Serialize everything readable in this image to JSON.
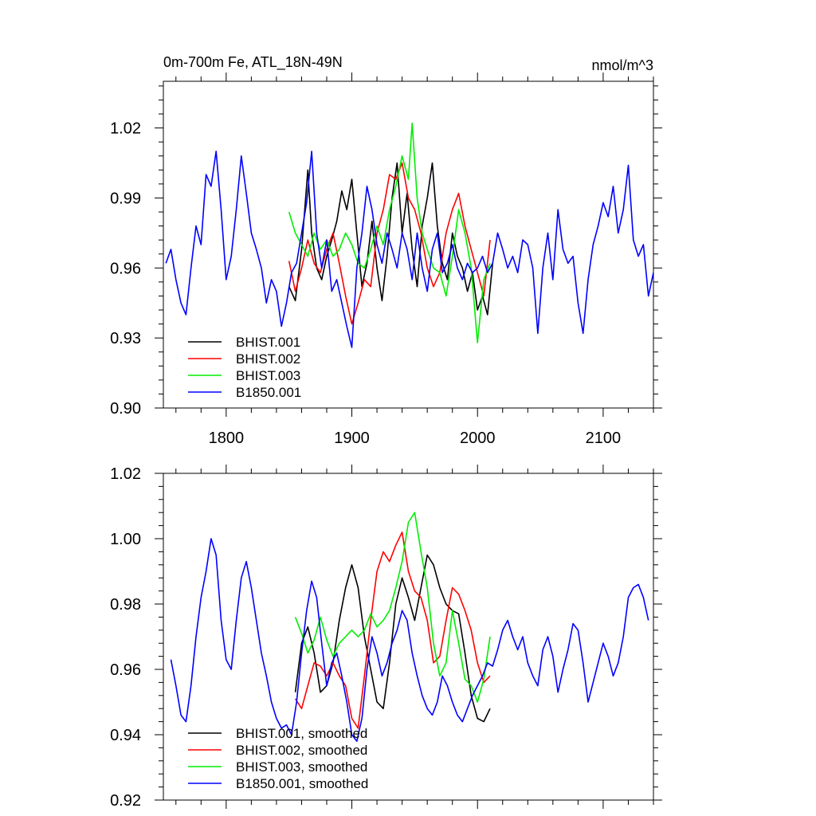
{
  "chart_data": [
    {
      "type": "line",
      "title": "0m-700m Fe, ATL_18N-49N",
      "units": "nmol/m^3",
      "xlim": [
        1750,
        2140
      ],
      "ylim": [
        0.9,
        1.04
      ],
      "xticks": [
        1800,
        1900,
        2000,
        2100
      ],
      "xtick_labels": [
        "1800",
        "1900",
        "2000",
        "2100"
      ],
      "yticks": [
        0.9,
        0.93,
        0.96,
        0.99,
        1.02
      ],
      "ytick_labels": [
        "0.90",
        "0.93",
        "0.96",
        "0.99",
        "1.02"
      ],
      "legend_position": "bottom-left",
      "series": [
        {
          "name": "BHIST.001",
          "color": "#000000",
          "x": [
            1850,
            1855,
            1860,
            1865,
            1868,
            1872,
            1876,
            1880,
            1884,
            1888,
            1892,
            1896,
            1900,
            1904,
            1908,
            1912,
            1916,
            1920,
            1924,
            1928,
            1932,
            1936,
            1940,
            1944,
            1948,
            1952,
            1956,
            1960,
            1964,
            1968,
            1972,
            1976,
            1980,
            1984,
            1988,
            1992,
            1996,
            2000,
            2004,
            2008,
            2012
          ],
          "values": [
            0.952,
            0.946,
            0.968,
            1.002,
            0.975,
            0.96,
            0.955,
            0.965,
            0.972,
            0.98,
            0.993,
            0.985,
            0.998,
            0.975,
            0.952,
            0.962,
            0.98,
            0.96,
            0.946,
            0.965,
            0.99,
            1.005,
            0.975,
            0.992,
            0.968,
            0.952,
            0.978,
            0.99,
            1.005,
            0.978,
            0.962,
            0.955,
            0.975,
            0.965,
            0.96,
            0.95,
            0.958,
            0.942,
            0.948,
            0.94,
            0.962
          ]
        },
        {
          "name": "BHIST.002",
          "color": "#ff0000",
          "x": [
            1850,
            1855,
            1860,
            1865,
            1870,
            1875,
            1880,
            1885,
            1890,
            1895,
            1900,
            1905,
            1910,
            1915,
            1920,
            1925,
            1930,
            1935,
            1940,
            1945,
            1950,
            1955,
            1960,
            1965,
            1970,
            1975,
            1980,
            1985,
            1990,
            1995,
            2000,
            2005,
            2010
          ],
          "values": [
            0.963,
            0.95,
            0.96,
            0.972,
            0.962,
            0.958,
            0.968,
            0.975,
            0.962,
            0.948,
            0.936,
            0.945,
            0.955,
            0.952,
            0.975,
            0.985,
            1.0,
            0.998,
            1.005,
            0.99,
            0.985,
            0.975,
            0.96,
            0.952,
            0.958,
            0.975,
            0.985,
            0.992,
            0.978,
            0.968,
            0.958,
            0.948,
            0.972
          ]
        },
        {
          "name": "BHIST.003",
          "color": "#00ee00",
          "x": [
            1850,
            1855,
            1860,
            1865,
            1870,
            1875,
            1880,
            1885,
            1890,
            1895,
            1900,
            1905,
            1910,
            1915,
            1920,
            1925,
            1930,
            1935,
            1940,
            1945,
            1948,
            1952,
            1956,
            1960,
            1965,
            1970,
            1975,
            1980,
            1985,
            1990,
            1995,
            2000,
            2005,
            2010
          ],
          "values": [
            0.984,
            0.975,
            0.97,
            0.965,
            0.975,
            0.968,
            0.972,
            0.965,
            0.968,
            0.975,
            0.97,
            0.962,
            0.96,
            0.968,
            0.978,
            0.97,
            0.985,
            0.995,
            1.008,
            0.998,
            1.022,
            0.99,
            0.975,
            0.968,
            0.96,
            0.958,
            0.948,
            0.965,
            0.985,
            0.975,
            0.96,
            0.928,
            0.955,
            0.962
          ]
        },
        {
          "name": "B1850.001",
          "color": "#0000ff",
          "x": [
            1752,
            1756,
            1760,
            1764,
            1768,
            1772,
            1776,
            1780,
            1784,
            1788,
            1792,
            1796,
            1800,
            1804,
            1808,
            1812,
            1816,
            1820,
            1824,
            1828,
            1832,
            1836,
            1840,
            1844,
            1848,
            1852,
            1856,
            1860,
            1864,
            1868,
            1872,
            1876,
            1880,
            1884,
            1888,
            1892,
            1896,
            1900,
            1904,
            1908,
            1912,
            1916,
            1920,
            1924,
            1928,
            1932,
            1936,
            1940,
            1944,
            1948,
            1952,
            1956,
            1960,
            1964,
            1968,
            1972,
            1976,
            1980,
            1984,
            1988,
            1992,
            1996,
            2000,
            2004,
            2008,
            2012,
            2016,
            2020,
            2024,
            2028,
            2032,
            2036,
            2040,
            2044,
            2048,
            2052,
            2056,
            2060,
            2064,
            2068,
            2072,
            2076,
            2080,
            2084,
            2088,
            2092,
            2096,
            2100,
            2104,
            2108,
            2112,
            2116,
            2120,
            2124,
            2128,
            2132,
            2136,
            2140
          ],
          "values": [
            0.962,
            0.968,
            0.955,
            0.945,
            0.94,
            0.96,
            0.978,
            0.97,
            1.0,
            0.995,
            1.01,
            0.985,
            0.955,
            0.965,
            0.985,
            1.008,
            0.992,
            0.975,
            0.968,
            0.96,
            0.945,
            0.955,
            0.95,
            0.935,
            0.945,
            0.958,
            0.962,
            0.975,
            0.988,
            1.01,
            0.975,
            0.96,
            0.972,
            0.95,
            0.955,
            0.945,
            0.935,
            0.926,
            0.96,
            0.975,
            0.995,
            0.985,
            0.97,
            0.962,
            0.975,
            0.968,
            0.96,
            0.975,
            0.968,
            0.955,
            0.975,
            0.96,
            0.95,
            0.968,
            0.975,
            0.958,
            0.962,
            0.97,
            0.96,
            0.955,
            0.962,
            0.958,
            0.96,
            0.965,
            0.958,
            0.962,
            0.975,
            0.968,
            0.96,
            0.965,
            0.958,
            0.972,
            0.97,
            0.96,
            0.932,
            0.96,
            0.975,
            0.955,
            0.985,
            0.968,
            0.962,
            0.965,
            0.945,
            0.932,
            0.955,
            0.97,
            0.978,
            0.988,
            0.982,
            0.995,
            0.975,
            0.985,
            1.004,
            0.972,
            0.965,
            0.97,
            0.948,
            0.958
          ]
        }
      ]
    },
    {
      "type": "line",
      "title": "",
      "xlim": [
        1750,
        2140
      ],
      "ylim": [
        0.92,
        1.02
      ],
      "xticks": [
        1800,
        1900,
        2000,
        2100
      ],
      "yticks": [
        0.92,
        0.94,
        0.96,
        0.98,
        1.0,
        1.02
      ],
      "ytick_labels": [
        "0.92",
        "0.94",
        "0.96",
        "0.98",
        "1.00",
        "1.02"
      ],
      "legend_position": "bottom-left",
      "series": [
        {
          "name": "BHIST.001, smoothed",
          "color": "#000000",
          "x": [
            1855,
            1860,
            1865,
            1870,
            1875,
            1880,
            1885,
            1890,
            1895,
            1900,
            1905,
            1910,
            1915,
            1920,
            1925,
            1930,
            1935,
            1940,
            1945,
            1950,
            1955,
            1960,
            1965,
            1970,
            1975,
            1980,
            1985,
            1990,
            1995,
            2000,
            2005,
            2010
          ],
          "values": [
            0.953,
            0.968,
            0.973,
            0.965,
            0.953,
            0.955,
            0.962,
            0.975,
            0.985,
            0.992,
            0.985,
            0.97,
            0.96,
            0.95,
            0.948,
            0.962,
            0.98,
            0.988,
            0.982,
            0.975,
            0.985,
            0.995,
            0.992,
            0.985,
            0.98,
            0.978,
            0.977,
            0.965,
            0.952,
            0.945,
            0.944,
            0.948
          ]
        },
        {
          "name": "BHIST.002, smoothed",
          "color": "#ff0000",
          "x": [
            1855,
            1860,
            1865,
            1870,
            1875,
            1880,
            1885,
            1890,
            1895,
            1900,
            1905,
            1910,
            1915,
            1920,
            1925,
            1930,
            1935,
            1940,
            1945,
            1950,
            1955,
            1960,
            1965,
            1970,
            1975,
            1980,
            1985,
            1990,
            1995,
            2000,
            2005,
            2010
          ],
          "values": [
            0.951,
            0.948,
            0.955,
            0.962,
            0.961,
            0.958,
            0.962,
            0.958,
            0.955,
            0.945,
            0.942,
            0.958,
            0.975,
            0.99,
            0.996,
            0.993,
            0.998,
            1.002,
            0.99,
            0.984,
            0.982,
            0.975,
            0.962,
            0.964,
            0.975,
            0.985,
            0.983,
            0.978,
            0.972,
            0.962,
            0.956,
            0.958
          ]
        },
        {
          "name": "BHIST.003, smoothed",
          "color": "#00ee00",
          "x": [
            1855,
            1860,
            1865,
            1870,
            1875,
            1880,
            1885,
            1890,
            1895,
            1900,
            1905,
            1910,
            1915,
            1920,
            1925,
            1930,
            1935,
            1940,
            1945,
            1950,
            1955,
            1960,
            1965,
            1970,
            1975,
            1980,
            1985,
            1990,
            1995,
            2000,
            2005,
            2010
          ],
          "values": [
            0.976,
            0.971,
            0.965,
            0.969,
            0.976,
            0.969,
            0.964,
            0.968,
            0.97,
            0.972,
            0.97,
            0.972,
            0.977,
            0.973,
            0.975,
            0.978,
            0.985,
            0.993,
            1.005,
            1.008,
            0.996,
            0.985,
            0.968,
            0.958,
            0.962,
            0.978,
            0.968,
            0.957,
            0.955,
            0.95,
            0.957,
            0.97
          ]
        },
        {
          "name": "B1850.001, smoothed",
          "color": "#0000ff",
          "x": [
            1756,
            1760,
            1764,
            1768,
            1772,
            1776,
            1780,
            1784,
            1788,
            1792,
            1796,
            1800,
            1804,
            1808,
            1812,
            1816,
            1820,
            1824,
            1828,
            1832,
            1836,
            1840,
            1844,
            1848,
            1852,
            1856,
            1860,
            1864,
            1868,
            1872,
            1876,
            1880,
            1884,
            1888,
            1892,
            1896,
            1900,
            1904,
            1908,
            1912,
            1916,
            1920,
            1924,
            1928,
            1932,
            1936,
            1940,
            1944,
            1948,
            1952,
            1956,
            1960,
            1964,
            1968,
            1972,
            1976,
            1980,
            1984,
            1988,
            1992,
            1996,
            2000,
            2004,
            2008,
            2012,
            2016,
            2020,
            2024,
            2028,
            2032,
            2036,
            2040,
            2044,
            2048,
            2052,
            2056,
            2060,
            2064,
            2068,
            2072,
            2076,
            2080,
            2084,
            2088,
            2092,
            2096,
            2100,
            2104,
            2108,
            2112,
            2116,
            2120,
            2124,
            2128,
            2132,
            2136
          ],
          "values": [
            0.963,
            0.955,
            0.946,
            0.944,
            0.955,
            0.97,
            0.982,
            0.99,
            1.0,
            0.995,
            0.975,
            0.963,
            0.96,
            0.975,
            0.988,
            0.993,
            0.985,
            0.975,
            0.965,
            0.958,
            0.95,
            0.945,
            0.942,
            0.943,
            0.94,
            0.95,
            0.965,
            0.978,
            0.987,
            0.982,
            0.968,
            0.955,
            0.962,
            0.965,
            0.958,
            0.95,
            0.94,
            0.938,
            0.945,
            0.96,
            0.97,
            0.965,
            0.958,
            0.962,
            0.968,
            0.972,
            0.978,
            0.975,
            0.965,
            0.958,
            0.952,
            0.948,
            0.946,
            0.95,
            0.958,
            0.955,
            0.95,
            0.946,
            0.944,
            0.948,
            0.952,
            0.955,
            0.958,
            0.962,
            0.961,
            0.966,
            0.972,
            0.975,
            0.97,
            0.966,
            0.97,
            0.962,
            0.958,
            0.955,
            0.966,
            0.97,
            0.964,
            0.953,
            0.96,
            0.966,
            0.974,
            0.972,
            0.962,
            0.95,
            0.956,
            0.962,
            0.968,
            0.964,
            0.958,
            0.962,
            0.97,
            0.982,
            0.985,
            0.986,
            0.982,
            0.975
          ]
        }
      ]
    }
  ]
}
